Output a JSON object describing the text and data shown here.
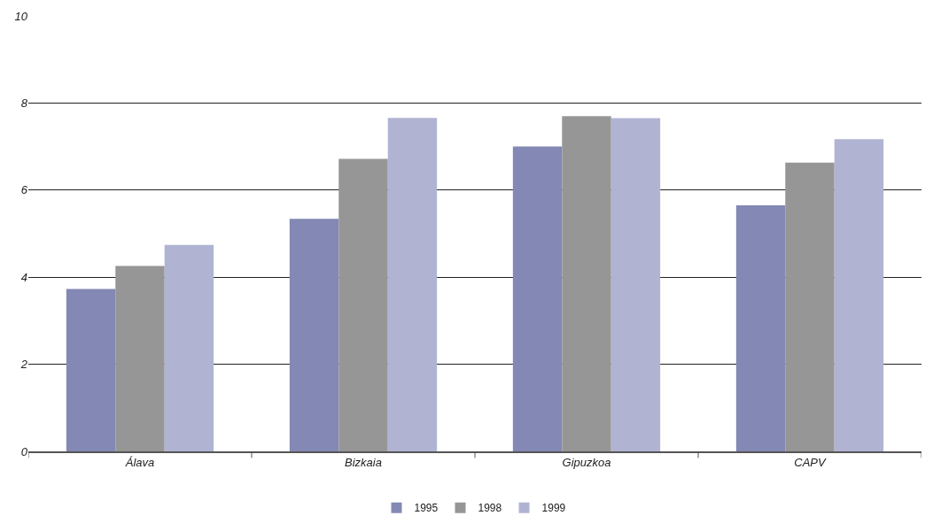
{
  "chart_data": {
    "type": "bar",
    "categories": [
      "Álava",
      "Bizkaia",
      "Gipuzkoa",
      "CAPV"
    ],
    "series": [
      {
        "name": "1995",
        "color": "#8389b4",
        "values": [
          3.73,
          5.34,
          7.0,
          5.65
        ]
      },
      {
        "name": "1998",
        "color": "#969696",
        "values": [
          4.26,
          6.72,
          7.7,
          6.63
        ]
      },
      {
        "name": "1999",
        "color": "#b0b4d2",
        "values": [
          4.74,
          7.66,
          7.65,
          7.17
        ]
      }
    ],
    "ylim": [
      0,
      10
    ],
    "yticks": [
      0,
      2,
      4,
      6,
      8,
      10
    ],
    "grid": "y",
    "legend": "bottom"
  }
}
